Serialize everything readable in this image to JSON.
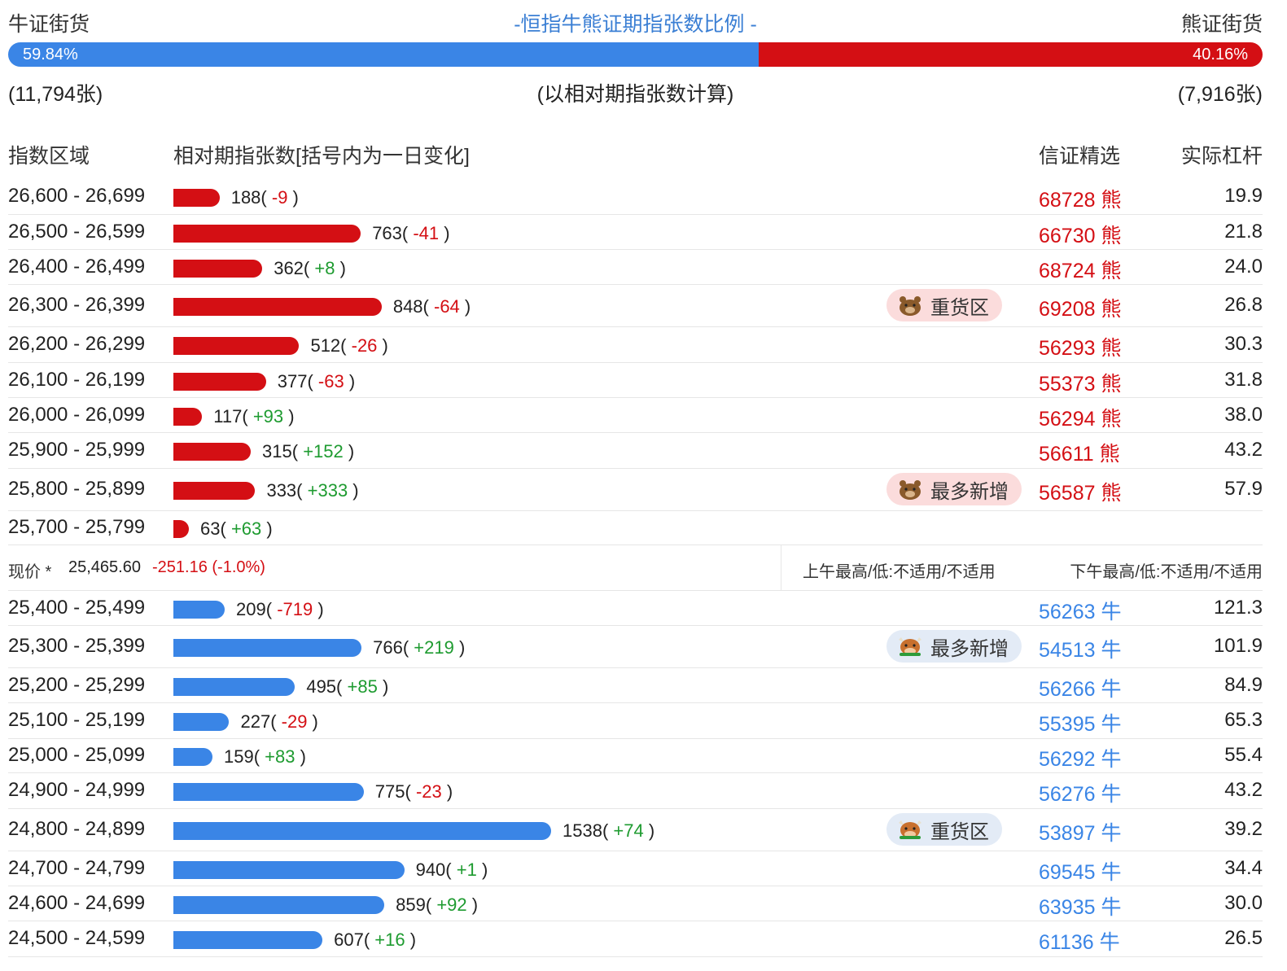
{
  "top": {
    "bull_label": "牛证街货",
    "title": "-恒指牛熊证期指张数比例 -",
    "bear_label": "熊证街货",
    "bull_pct": "59.84%",
    "bear_pct": "40.16%",
    "bull_fraction": 0.5984,
    "bull_count": "(11,794张)",
    "basis": "(以相对期指张数计算)",
    "bear_count": "(7,916张)"
  },
  "header": {
    "range": "指数区域",
    "count": "相对期指张数[括号内为一日变化]",
    "pick": "信证精选",
    "leverage": "实际杠杆"
  },
  "colors": {
    "bear": "#d40f14",
    "bull": "#3a85e6",
    "positive": "#1e9b30"
  },
  "bear_rows": [
    {
      "range": "26,600 - 26,699",
      "count": "188",
      "change": "-9",
      "pick": "68728 熊",
      "lev": "19.9",
      "value": 188
    },
    {
      "range": "26,500 - 26,599",
      "count": "763",
      "change": "-41",
      "pick": "66730 熊",
      "lev": "21.8",
      "value": 763
    },
    {
      "range": "26,400 - 26,499",
      "count": "362",
      "change": "+8",
      "pick": "68724 熊",
      "lev": "24.0",
      "value": 362
    },
    {
      "range": "26,300 - 26,399",
      "count": "848",
      "change": "-64",
      "pick": "69208 熊",
      "lev": "26.8",
      "value": 848,
      "badge": "重货区"
    },
    {
      "range": "26,200 - 26,299",
      "count": "512",
      "change": "-26",
      "pick": "56293 熊",
      "lev": "30.3",
      "value": 512
    },
    {
      "range": "26,100 - 26,199",
      "count": "377",
      "change": "-63",
      "pick": "55373 熊",
      "lev": "31.8",
      "value": 377
    },
    {
      "range": "26,000 - 26,099",
      "count": "117",
      "change": "+93",
      "pick": "56294 熊",
      "lev": "38.0",
      "value": 117
    },
    {
      "range": "25,900 - 25,999",
      "count": "315",
      "change": "+152",
      "pick": "56611 熊",
      "lev": "43.2",
      "value": 315
    },
    {
      "range": "25,800 - 25,899",
      "count": "333",
      "change": "+333",
      "pick": "56587 熊",
      "lev": "57.9",
      "value": 333,
      "badge": "最多新增"
    },
    {
      "range": "25,700 - 25,799",
      "count": "63",
      "change": "+63",
      "pick": "",
      "lev": "",
      "value": 63
    }
  ],
  "price": {
    "label": "现价 *",
    "value": "25,465.60",
    "change": "-251.16 (-1.0%)",
    "am": "上午最高/低:不适用/不适用",
    "pm": "下午最高/低:不适用/不适用"
  },
  "bull_rows": [
    {
      "range": "25,400 - 25,499",
      "count": "209",
      "change": "-719",
      "pick": "56263 牛",
      "lev": "121.3",
      "value": 209
    },
    {
      "range": "25,300 - 25,399",
      "count": "766",
      "change": "+219",
      "pick": "54513 牛",
      "lev": "101.9",
      "value": 766,
      "badge": "最多新增"
    },
    {
      "range": "25,200 - 25,299",
      "count": "495",
      "change": "+85",
      "pick": "56266 牛",
      "lev": "84.9",
      "value": 495
    },
    {
      "range": "25,100 - 25,199",
      "count": "227",
      "change": "-29",
      "pick": "55395 牛",
      "lev": "65.3",
      "value": 227
    },
    {
      "range": "25,000 - 25,099",
      "count": "159",
      "change": "+83",
      "pick": "56292 牛",
      "lev": "55.4",
      "value": 159
    },
    {
      "range": "24,900 - 24,999",
      "count": "775",
      "change": "-23",
      "pick": "56276 牛",
      "lev": "43.2",
      "value": 775
    },
    {
      "range": "24,800 - 24,899",
      "count": "1538",
      "change": "+74",
      "pick": "53897 牛",
      "lev": "39.2",
      "value": 1538,
      "badge": "重货区"
    },
    {
      "range": "24,700 - 24,799",
      "count": "940",
      "change": "+1",
      "pick": "69545 牛",
      "lev": "34.4",
      "value": 940
    },
    {
      "range": "24,600 - 24,699",
      "count": "859",
      "change": "+92",
      "pick": "63935 牛",
      "lev": "30.0",
      "value": 859
    },
    {
      "range": "24,500 - 24,599",
      "count": "607",
      "change": "+16",
      "pick": "61136 牛",
      "lev": "26.5",
      "value": 607
    }
  ]
}
